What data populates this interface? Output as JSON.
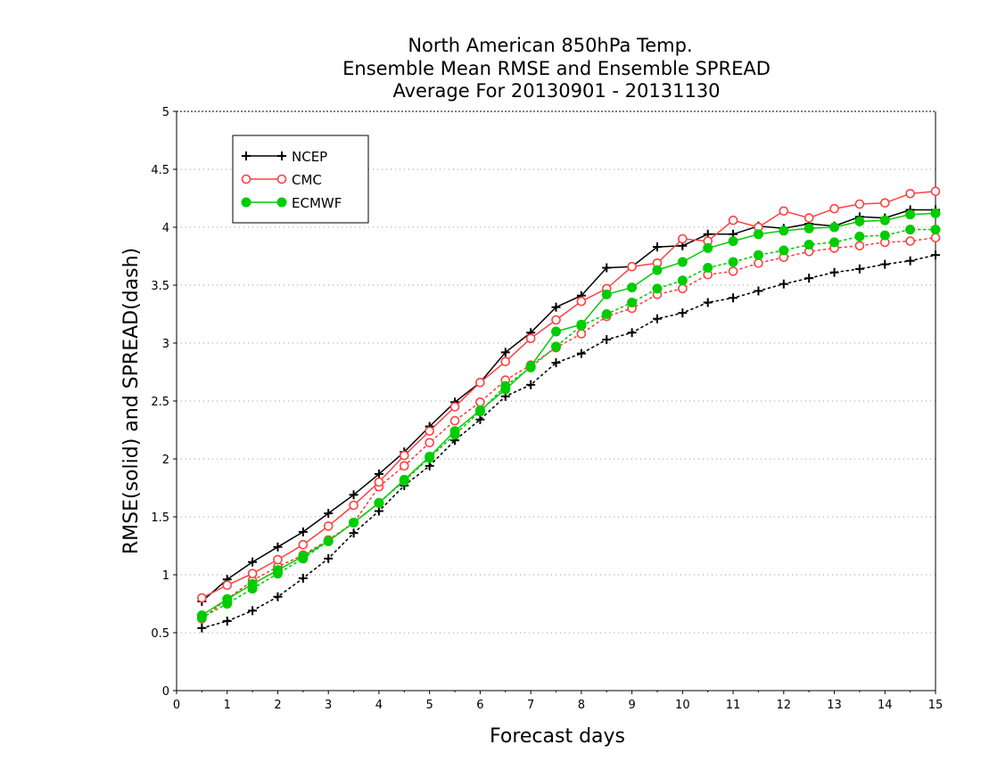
{
  "chart_data": {
    "type": "line",
    "title": [
      "North American 850hPa Temp.",
      "Ensemble Mean RMSE and Ensemble SPREAD",
      "Average For 20130901 - 20131130"
    ],
    "xlabel": "Forecast days",
    "ylabel": "RMSE(solid) and SPREAD(dash)",
    "xlim": [
      0,
      15
    ],
    "ylim": [
      0,
      5
    ],
    "xticks": [
      "0",
      "1",
      "2",
      "3",
      "4",
      "5",
      "6",
      "7",
      "8",
      "9",
      "10",
      "11",
      "12",
      "13",
      "14",
      "15"
    ],
    "yticks": [
      "0",
      "0.5",
      "1",
      "1.5",
      "2",
      "2.5",
      "3",
      "3.5",
      "4",
      "4.5",
      "5"
    ],
    "grid": "horizontal dotted",
    "legend_position": "top-left",
    "x": [
      0.5,
      1,
      1.5,
      2,
      2.5,
      3,
      3.5,
      4,
      4.5,
      5,
      5.5,
      6,
      6.5,
      7,
      7.5,
      8,
      8.5,
      9,
      9.5,
      10,
      10.5,
      11,
      11.5,
      12,
      12.5,
      13,
      13.5,
      14,
      14.5,
      15
    ],
    "series": [
      {
        "name": "NCEP",
        "color": "#000000",
        "marker": "plus",
        "rmse": [
          0.77,
          0.96,
          1.11,
          1.24,
          1.37,
          1.53,
          1.69,
          1.87,
          2.06,
          2.28,
          2.49,
          2.66,
          2.92,
          3.09,
          3.31,
          3.41,
          3.65,
          3.66,
          3.83,
          3.84,
          3.94,
          3.94,
          4.01,
          3.99,
          4.03,
          4.01,
          4.09,
          4.08,
          4.15,
          4.15
        ],
        "spread": [
          0.54,
          0.6,
          0.69,
          0.81,
          0.97,
          1.14,
          1.36,
          1.55,
          1.77,
          1.94,
          2.16,
          2.34,
          2.54,
          2.64,
          2.83,
          2.91,
          3.03,
          3.09,
          3.21,
          3.26,
          3.35,
          3.39,
          3.45,
          3.51,
          3.56,
          3.61,
          3.64,
          3.68,
          3.71,
          3.76
        ]
      },
      {
        "name": "CMC",
        "color": "#ff4040",
        "marker": "circle",
        "rmse": [
          0.8,
          0.91,
          1.01,
          1.13,
          1.26,
          1.42,
          1.6,
          1.8,
          2.03,
          2.24,
          2.45,
          2.66,
          2.84,
          3.04,
          3.2,
          3.36,
          3.47,
          3.66,
          3.69,
          3.9,
          3.88,
          4.06,
          4.0,
          4.14,
          4.08,
          4.16,
          4.2,
          4.21,
          4.29,
          4.31
        ],
        "spread": [
          0.62,
          0.79,
          0.95,
          1.07,
          1.17,
          1.3,
          1.45,
          1.76,
          1.94,
          2.14,
          2.33,
          2.49,
          2.68,
          2.81,
          2.96,
          3.08,
          3.23,
          3.3,
          3.42,
          3.47,
          3.59,
          3.62,
          3.69,
          3.74,
          3.79,
          3.82,
          3.84,
          3.87,
          3.88,
          3.91
        ]
      },
      {
        "name": "ECMWF",
        "color": "#00cc00",
        "marker": "dot",
        "rmse": [
          0.65,
          0.79,
          0.92,
          1.04,
          1.16,
          1.29,
          1.45,
          1.62,
          1.82,
          2.02,
          2.24,
          2.42,
          2.6,
          2.8,
          3.1,
          3.16,
          3.42,
          3.48,
          3.63,
          3.7,
          3.82,
          3.88,
          3.94,
          3.97,
          3.99,
          4.0,
          4.05,
          4.06,
          4.11,
          4.12
        ],
        "spread": [
          0.63,
          0.75,
          0.88,
          1.01,
          1.14,
          1.29,
          1.45,
          1.62,
          1.81,
          2.01,
          2.21,
          2.41,
          2.63,
          2.79,
          2.97,
          3.15,
          3.25,
          3.35,
          3.47,
          3.54,
          3.65,
          3.7,
          3.76,
          3.8,
          3.85,
          3.87,
          3.92,
          3.93,
          3.98,
          3.98
        ]
      }
    ]
  }
}
